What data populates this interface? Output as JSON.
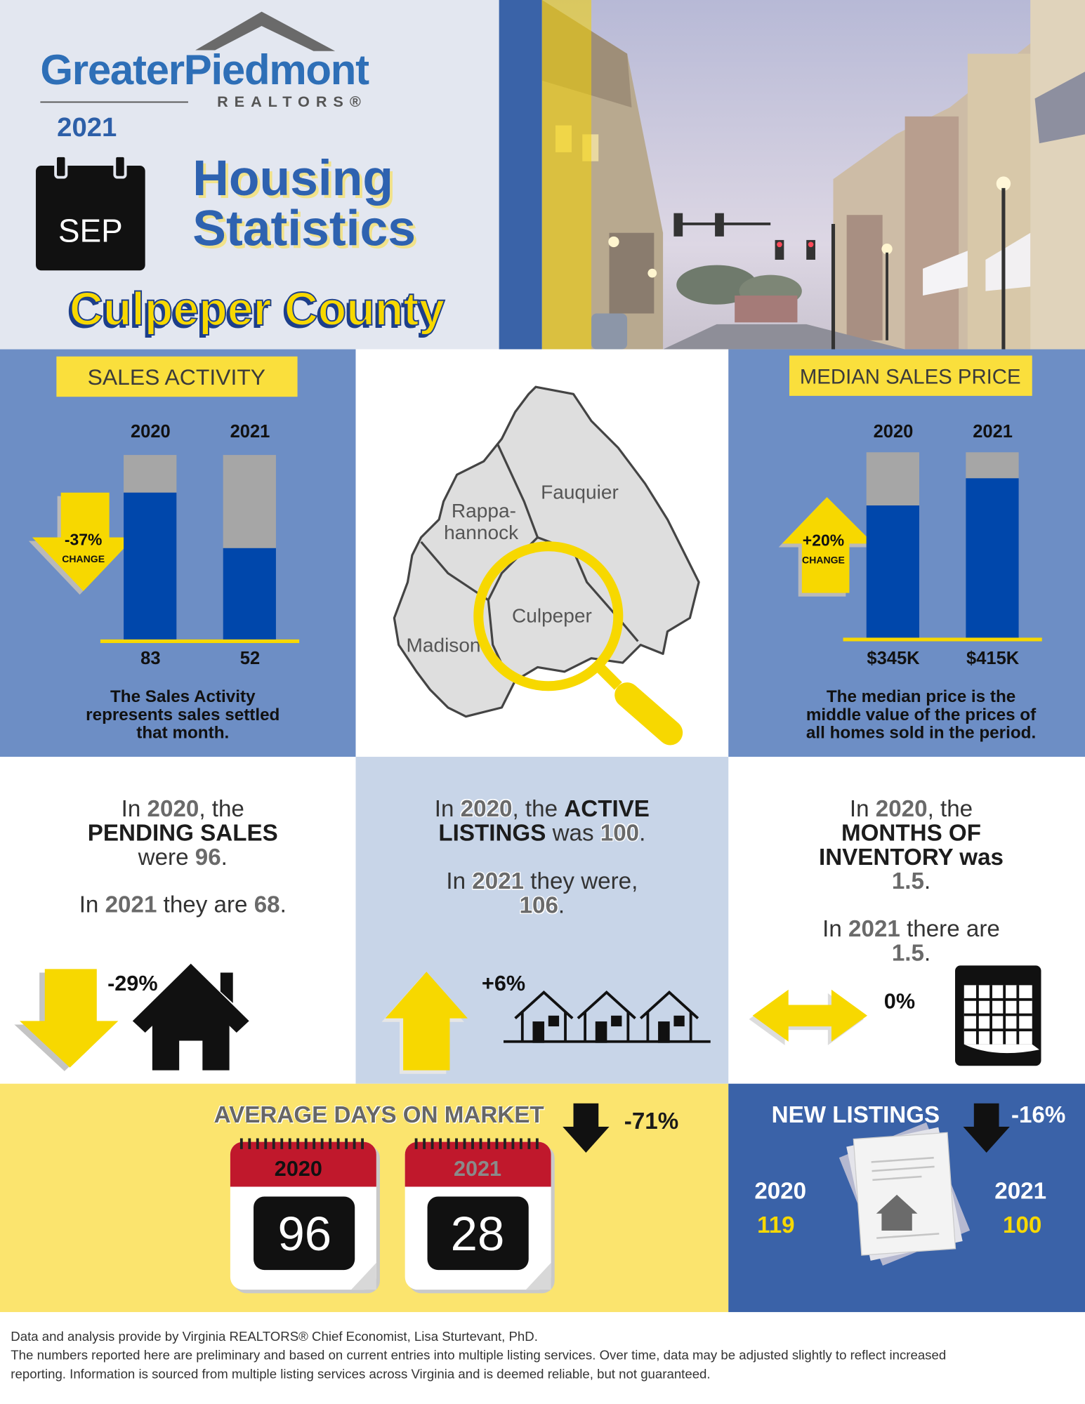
{
  "header": {
    "logo": "GreaterPiedmont",
    "logo_sub": "REALTORS®",
    "year": "2021",
    "month": "SEP",
    "title": [
      "Housing",
      "Statistics"
    ],
    "county": "Culpeper County"
  },
  "sales_activity": {
    "label": "SALES ACTIVITY",
    "years": [
      "2020",
      "2021"
    ],
    "values": [
      83,
      52
    ],
    "color": "#0047ab",
    "change": "-37%",
    "change_word": "CHANGE",
    "note": [
      "The Sales Activity",
      "represents sales settled",
      "that month."
    ]
  },
  "median_sales_price": {
    "label": "MEDIAN SALES PRICE",
    "years": [
      "2020",
      "2021"
    ],
    "values": [
      345000,
      415000
    ],
    "value_labels": [
      "$345K",
      "$415K"
    ],
    "color": "#0047ab",
    "change": "+20%",
    "change_word": "CHANGE",
    "note": [
      "The median price is the",
      "middle value of the prices of",
      "all homes sold in the period."
    ]
  },
  "map": {
    "labels": [
      "Fauquier",
      "Rappa-",
      "hannock",
      "Culpeper",
      "Madison"
    ]
  },
  "pending_sales": {
    "lines": [
      [
        "In ",
        "2020",
        ", the"
      ],
      [
        "PENDING SALES"
      ],
      [
        "were ",
        "96",
        "."
      ],
      [
        "In ",
        "2021",
        " they are ",
        "68",
        "."
      ]
    ],
    "change": "-29%"
  },
  "active_listings": {
    "lines": [
      [
        "In ",
        "2020",
        ", the ",
        "ACTIVE"
      ],
      [
        "LISTINGS",
        " was ",
        "100",
        "."
      ],
      [
        "In ",
        "2021",
        " they were,"
      ],
      [
        "106",
        "."
      ]
    ],
    "change": "+6%"
  },
  "months_of_inventory": {
    "lines": [
      [
        "In ",
        "2020",
        ", the"
      ],
      [
        "MONTHS OF"
      ],
      [
        "INVENTORY was"
      ],
      [
        "1.5",
        "."
      ],
      [
        "In ",
        "2021",
        " there are"
      ],
      [
        "1.5",
        "."
      ]
    ],
    "change": "0%"
  },
  "days_on_market": {
    "title": "AVERAGE DAYS ON MARKET",
    "change": "-71%",
    "years": [
      "2020",
      "2021"
    ],
    "values": [
      96,
      28
    ]
  },
  "new_listings": {
    "title": "NEW LISTINGS",
    "change": "-16%",
    "years": [
      "2020",
      "2021"
    ],
    "values": [
      119,
      100
    ]
  },
  "footer": [
    "Data and analysis provide by Virginia REALTORS® Chief Economist, Lisa Sturtevant, PhD.",
    "The numbers reported here are preliminary and based on current entries into multiple listing services. Over time, data may be adjusted slightly to reflect increased",
    "reporting. Information is sourced from multiple listing services across Virginia and is deemed reliable, but not guaranteed."
  ]
}
